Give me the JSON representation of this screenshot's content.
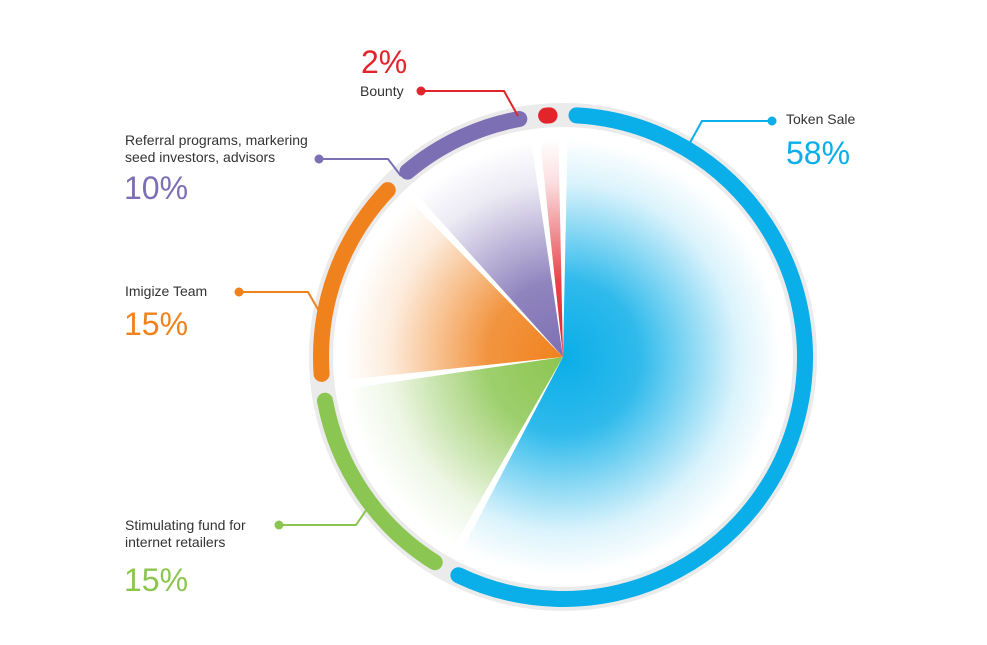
{
  "chart_data": {
    "type": "pie",
    "title": "",
    "slices": [
      {
        "name": "Token Sale",
        "value": 58,
        "label": "58%",
        "color": "#0AAEE8"
      },
      {
        "name": "Stimulating fund for internet retailers",
        "label_lines": [
          "Stimulating fund for",
          "internet retailers"
        ],
        "value": 15,
        "label": "15%",
        "color": "#8CC652"
      },
      {
        "name": "Imigize Team",
        "value": 15,
        "label": "15%",
        "color": "#F0821E"
      },
      {
        "name": "Referral programs, markering seed investors, advisors",
        "label_lines": [
          "Referral programs, markering",
          "seed investors, advisors"
        ],
        "value": 10,
        "label": "10%",
        "color": "#7D6FB3"
      },
      {
        "name": "Bounty",
        "value": 2,
        "label": "2%",
        "color": "#E2242B"
      }
    ],
    "track_color": "#EBEBEB",
    "legend": "callouts"
  }
}
